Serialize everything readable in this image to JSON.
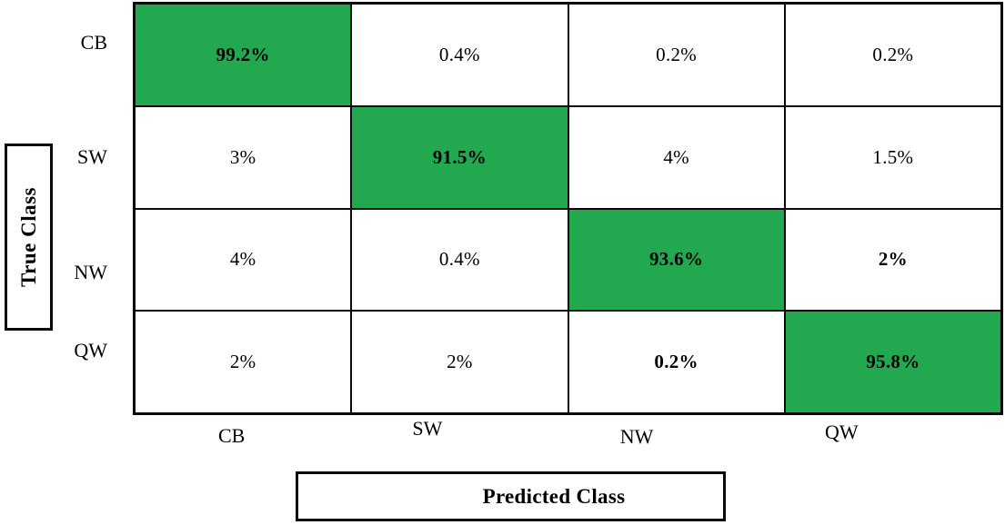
{
  "chart_data": {
    "type": "heatmap",
    "title": "",
    "xlabel": "Predicted Class",
    "ylabel": "True Class",
    "categories": [
      "CB",
      "SW",
      "NW",
      "QW"
    ],
    "row_labels": [
      "CB",
      "SW",
      "NW",
      "QW"
    ],
    "col_labels": [
      "CB",
      "SW",
      "NW",
      "QW"
    ],
    "values": [
      [
        "99.2%",
        "0.4%",
        "0.2%",
        "0.2%"
      ],
      [
        "3%",
        "91.5%",
        "4%",
        "1.5%"
      ],
      [
        "4%",
        "0.4%",
        "93.6%",
        "2%"
      ],
      [
        "2%",
        "2%",
        "0.2%",
        "95.8%"
      ]
    ],
    "values_numeric": [
      [
        99.2,
        0.4,
        0.2,
        0.2
      ],
      [
        3.0,
        91.5,
        4.0,
        1.5
      ],
      [
        4.0,
        0.4,
        93.6,
        2.0
      ],
      [
        2.0,
        2.0,
        0.2,
        95.8
      ]
    ],
    "diagonal_cells": [
      [
        0,
        0
      ],
      [
        1,
        1
      ],
      [
        2,
        2
      ],
      [
        3,
        3
      ]
    ],
    "bold_cells": [
      [
        0,
        0
      ],
      [
        1,
        1
      ],
      [
        2,
        2
      ],
      [
        3,
        3
      ],
      [
        2,
        3
      ],
      [
        3,
        2
      ]
    ],
    "legend": "none",
    "grid": "on",
    "colors": {
      "diagonal_fill": "#22a84e",
      "cell_fill": "#ffffff",
      "border": "#0a0a0a",
      "text": "#000000"
    }
  }
}
